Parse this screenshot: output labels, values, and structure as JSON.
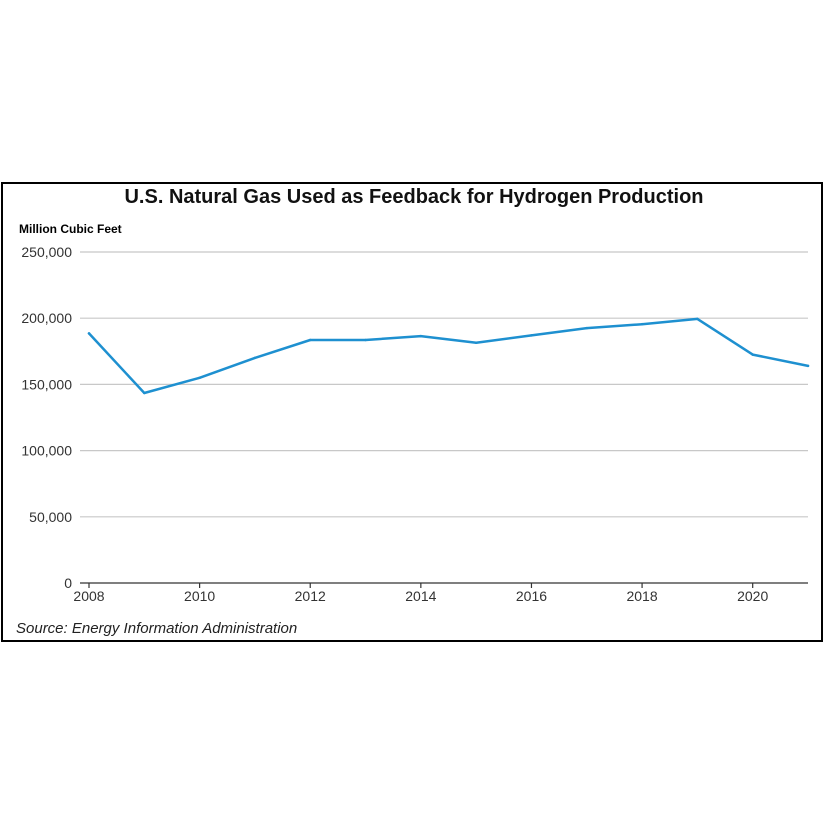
{
  "chart_data": {
    "type": "line",
    "title": "U.S. Natural Gas Used as Feedback for Hydrogen Production",
    "ylabel": "Million Cubic Feet",
    "xlabel": "",
    "source": "Source: Energy Information Administration",
    "x": [
      2008,
      2009,
      2010,
      2011,
      2012,
      2013,
      2014,
      2015,
      2016,
      2017,
      2018,
      2019,
      2020,
      2021
    ],
    "series": [
      {
        "values": [
          188500,
          143500,
          155000,
          170000,
          183500,
          183500,
          186500,
          181500,
          187000,
          192500,
          195500,
          199500,
          172500,
          164000
        ]
      }
    ],
    "xlim": [
      2008,
      2021
    ],
    "ylim": [
      0,
      250000
    ],
    "x_ticks": [
      2008,
      2010,
      2012,
      2014,
      2016,
      2018,
      2020
    ],
    "x_tick_labels": [
      "2008",
      "2010",
      "2012",
      "2014",
      "2016",
      "2018",
      "2020"
    ],
    "y_ticks": [
      0,
      50000,
      100000,
      150000,
      200000,
      250000
    ],
    "y_tick_labels": [
      "0",
      "50,000",
      "100,000",
      "150,000",
      "200,000",
      "250,000"
    ],
    "grid": true,
    "legend": "none",
    "colors": {
      "line": "#1e90d0",
      "grid": "#c8c8c8",
      "axis": "#333333"
    }
  }
}
